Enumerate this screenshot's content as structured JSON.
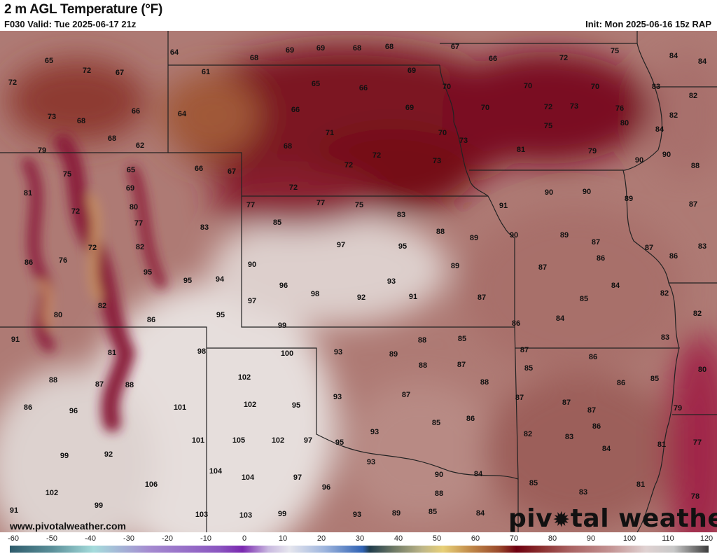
{
  "header": {
    "title": "2 m AGL Temperature (°F)",
    "valid": "F030 Valid: Tue 2025-06-17 21z",
    "init": "Init: Mon 2025-06-16 15z RAP"
  },
  "map": {
    "units": "°F",
    "station_values": [
      65,
      72,
      67,
      72,
      66,
      73,
      68,
      68,
      62,
      79,
      75,
      65,
      66,
      67,
      69,
      81,
      80,
      72,
      77,
      83,
      72,
      82,
      86,
      76,
      95,
      95,
      94,
      82,
      80,
      86,
      95,
      91,
      81,
      98,
      88,
      87,
      88,
      86,
      96,
      101,
      99,
      92,
      106,
      102,
      99,
      91,
      103,
      103,
      99,
      64,
      68,
      69,
      69,
      68,
      68,
      61,
      69,
      65,
      66,
      66,
      69,
      64,
      71,
      70,
      73,
      68,
      72,
      72,
      73,
      72,
      77,
      77,
      75,
      83,
      85,
      88,
      89,
      97,
      95,
      90,
      89,
      96,
      93,
      98,
      92,
      91,
      97,
      87,
      99,
      67,
      66,
      72,
      75,
      84,
      84,
      70,
      70,
      70,
      83,
      82,
      70,
      72,
      73,
      76,
      82,
      75,
      80,
      84,
      81,
      79,
      90,
      90,
      88,
      90,
      90,
      91,
      89,
      87,
      90,
      89,
      87,
      87,
      83,
      86,
      86,
      87,
      84,
      82,
      85,
      82,
      86,
      84,
      83,
      93,
      100,
      89,
      88,
      85,
      87,
      86,
      88,
      87,
      85,
      80,
      102,
      88,
      86,
      85,
      93,
      102,
      95,
      87,
      87,
      87,
      87,
      79,
      85,
      86,
      86,
      93,
      101,
      105,
      102,
      97,
      95,
      82,
      83,
      84,
      81,
      77,
      93,
      104,
      104,
      97,
      96,
      90,
      84,
      85,
      81,
      88,
      83,
      78,
      93,
      89,
      85,
      84
    ]
  },
  "footer": {
    "website": "www.pivotalweather.com",
    "logo_text": "pivotal weather"
  },
  "colorbar": {
    "ticks": [
      "-60",
      "-50",
      "-40",
      "-30",
      "-20",
      "-10",
      "0",
      "10",
      "20",
      "30",
      "40",
      "50",
      "60",
      "70",
      "80",
      "90",
      "100",
      "110",
      "120"
    ],
    "range": [
      -60,
      120
    ],
    "colors": {
      "cold": "#2d5b6b",
      "freezing": "#7a28b0",
      "warm": "#e8d078",
      "hot_red": "#6e0010",
      "very_hot": "#e0d2d2",
      "max": "#3c3c3c"
    }
  }
}
